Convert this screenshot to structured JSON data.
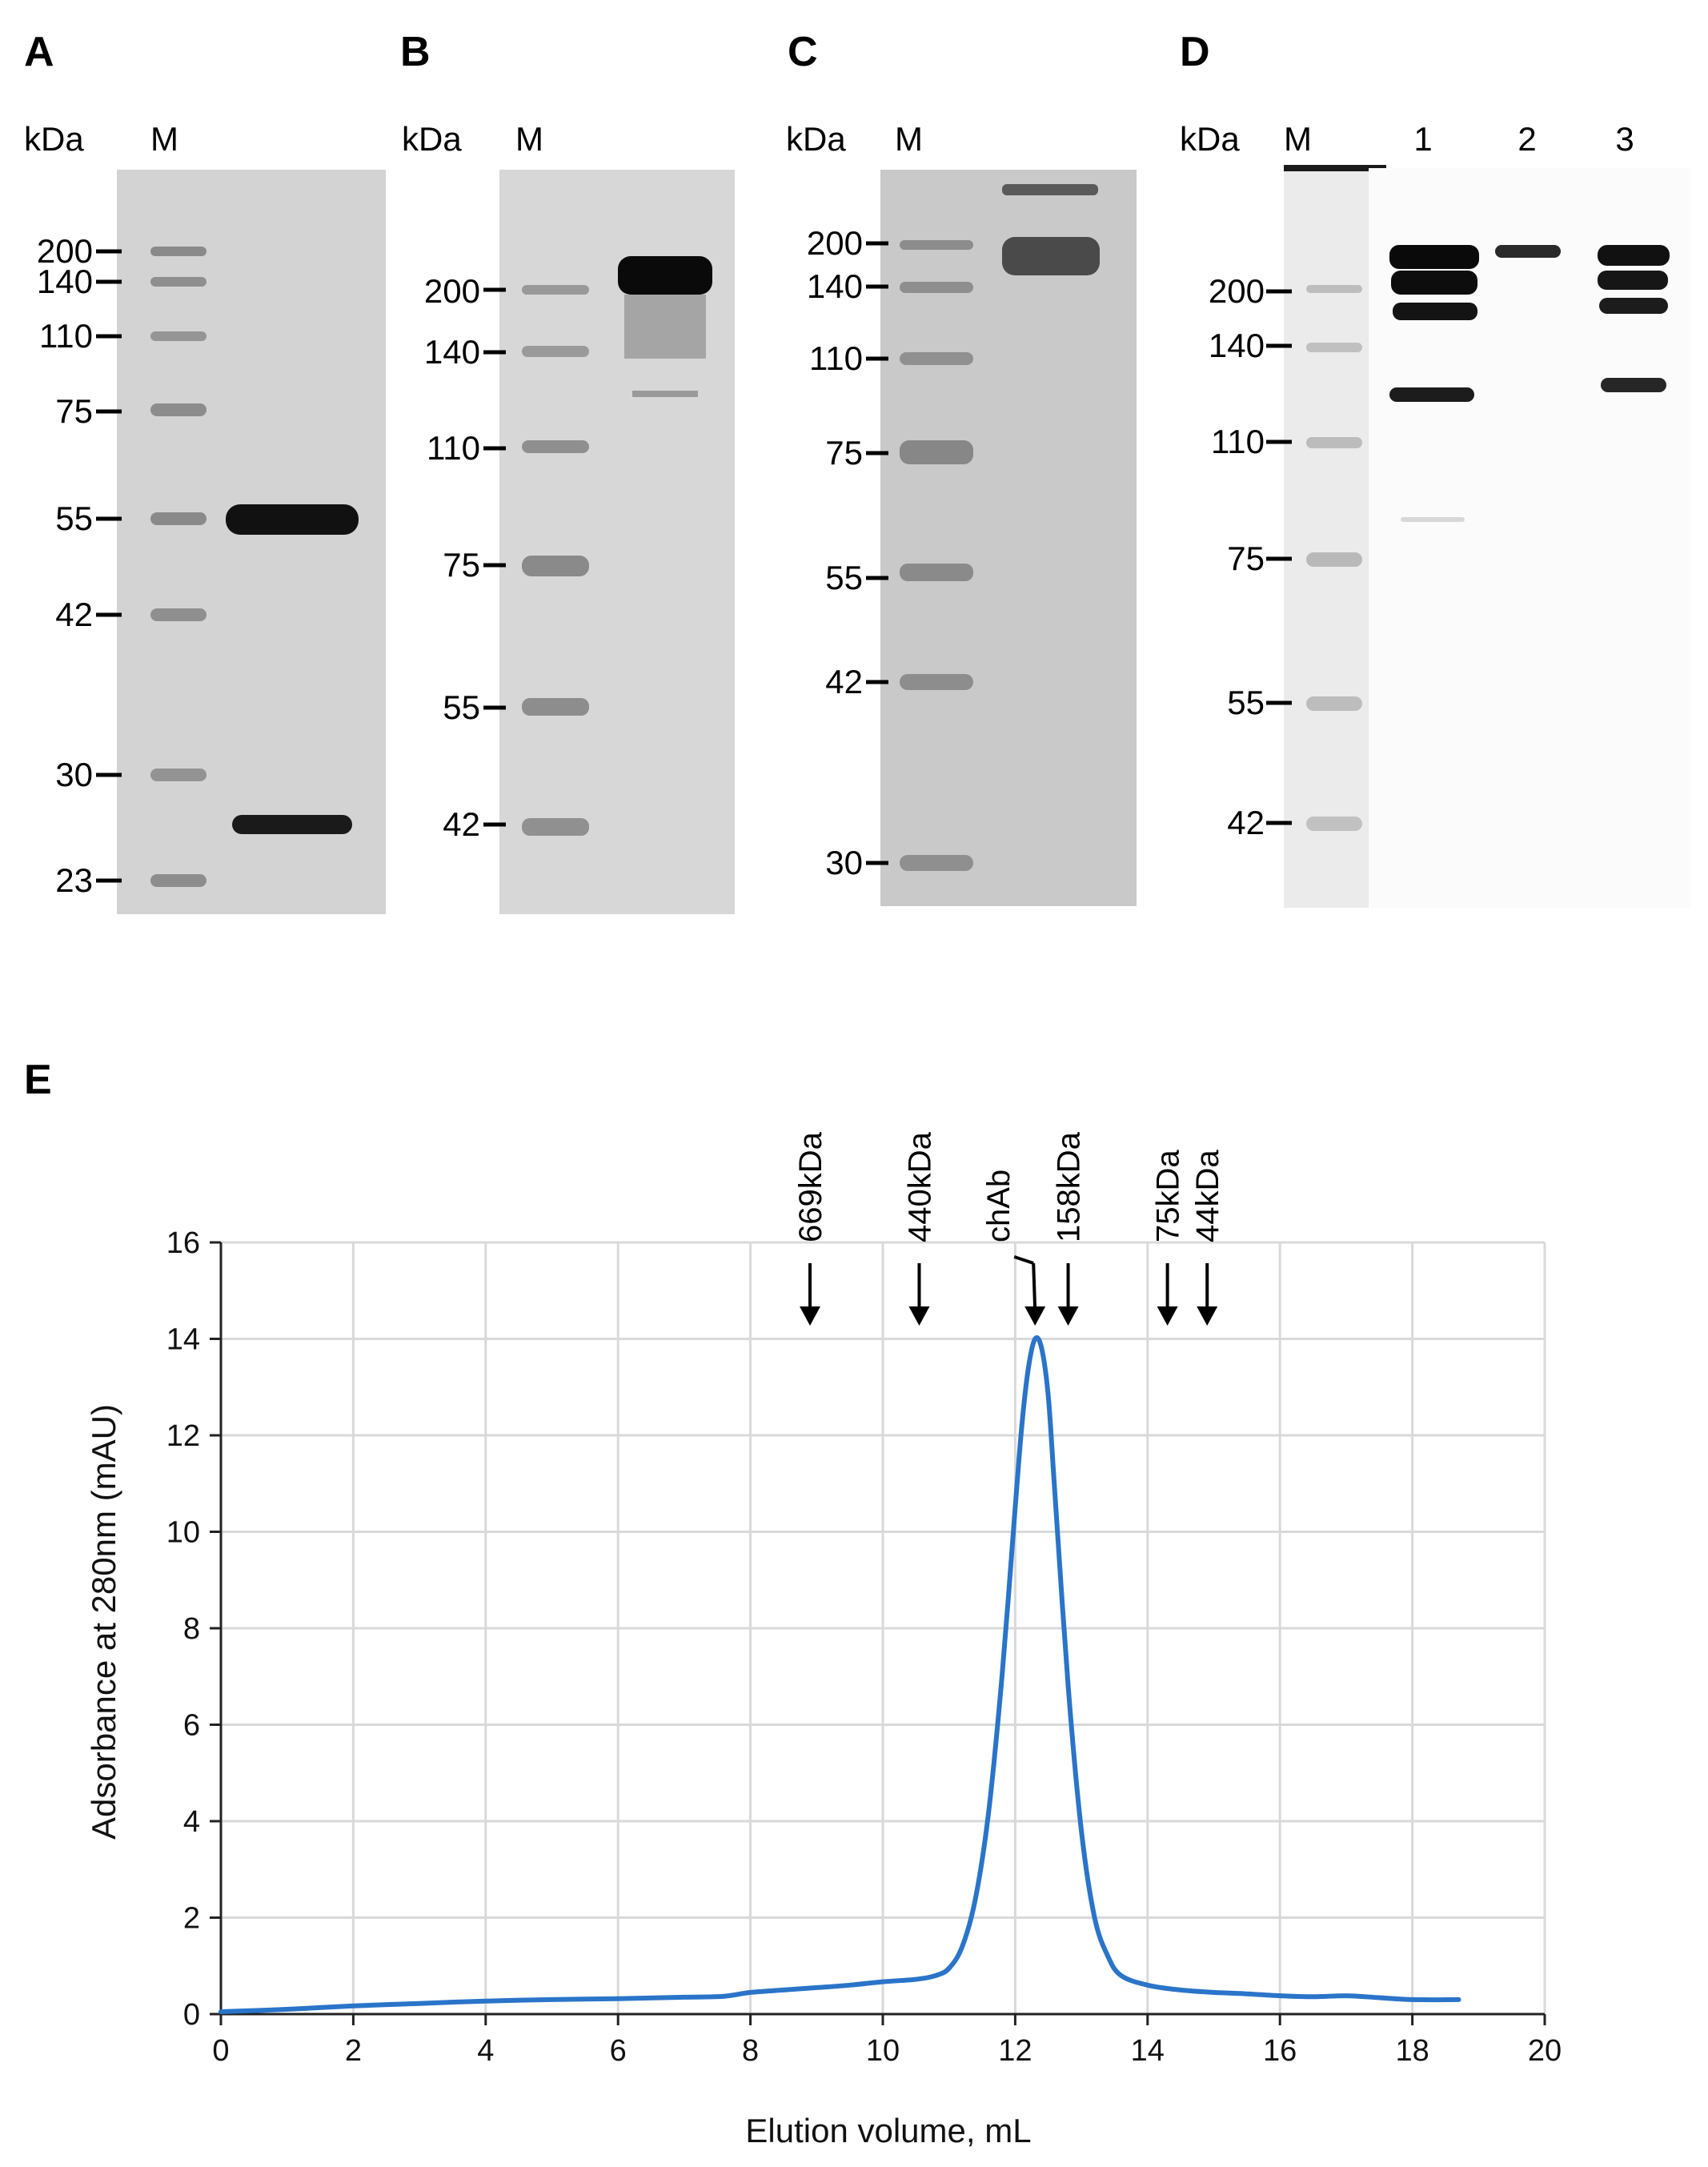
{
  "gel_panels": [
    {
      "letter": "A",
      "units": "kDa",
      "lane_headers": [
        "M"
      ],
      "ladder": [
        "200",
        "140",
        "110",
        "75",
        "55",
        "42",
        "30",
        "23"
      ]
    },
    {
      "letter": "B",
      "units": "kDa",
      "lane_headers": [
        "M"
      ],
      "ladder": [
        "200",
        "140",
        "110",
        "75",
        "55",
        "42"
      ]
    },
    {
      "letter": "C",
      "units": "kDa",
      "lane_headers": [
        "M"
      ],
      "ladder": [
        "200",
        "140",
        "110",
        "75",
        "55",
        "42",
        "30"
      ]
    },
    {
      "letter": "D",
      "units": "kDa",
      "lane_headers": [
        "M",
        "1",
        "2",
        "3"
      ],
      "ladder": [
        "200",
        "140",
        "110",
        "75",
        "55",
        "42"
      ]
    }
  ],
  "chart_panel_letter": "E",
  "chart_data": {
    "type": "line",
    "xlabel": "Elution volume, mL",
    "ylabel": "Adsorbance at 280nm (mAU)",
    "xlim": [
      0,
      20
    ],
    "ylim": [
      0,
      16
    ],
    "xticks": [
      "0",
      "2",
      "4",
      "6",
      "8",
      "10",
      "12",
      "14",
      "16",
      "18",
      "20"
    ],
    "yticks": [
      "0",
      "2",
      "4",
      "6",
      "8",
      "10",
      "12",
      "14",
      "16"
    ],
    "grid": true,
    "line_color": "#2a74c9",
    "series": [
      {
        "x": [
          0,
          1,
          2,
          3,
          4,
          5,
          6,
          7,
          7.6,
          8,
          8.5,
          9,
          9.5,
          10,
          10.5,
          10.8,
          11,
          11.2,
          11.4,
          11.6,
          11.8,
          12,
          12.1,
          12.2,
          12.3,
          12.4,
          12.5,
          12.6,
          12.8,
          13,
          13.2,
          13.4,
          13.6,
          14,
          14.5,
          15,
          15.5,
          16,
          16.5,
          17,
          17.5,
          18,
          18.7
        ],
        "y": [
          0.05,
          0.1,
          0.17,
          0.22,
          0.27,
          0.3,
          0.32,
          0.35,
          0.37,
          0.45,
          0.5,
          0.55,
          0.6,
          0.67,
          0.72,
          0.8,
          0.95,
          1.4,
          2.4,
          4.2,
          7.0,
          10.5,
          12.2,
          13.4,
          14.0,
          13.8,
          12.8,
          10.8,
          6.8,
          3.8,
          2.0,
          1.2,
          0.8,
          0.6,
          0.5,
          0.45,
          0.42,
          0.38,
          0.36,
          0.38,
          0.34,
          0.3,
          0.3
        ]
      }
    ],
    "annotations": [
      {
        "label": "669kDa",
        "x": 8.9
      },
      {
        "label": "440kDa",
        "x": 10.55
      },
      {
        "label": "chAb",
        "x": 12.3
      },
      {
        "label": "158kDa",
        "x": 12.8
      },
      {
        "label": "75kDa",
        "x": 14.3
      },
      {
        "label": "44kDa",
        "x": 14.9
      }
    ]
  }
}
